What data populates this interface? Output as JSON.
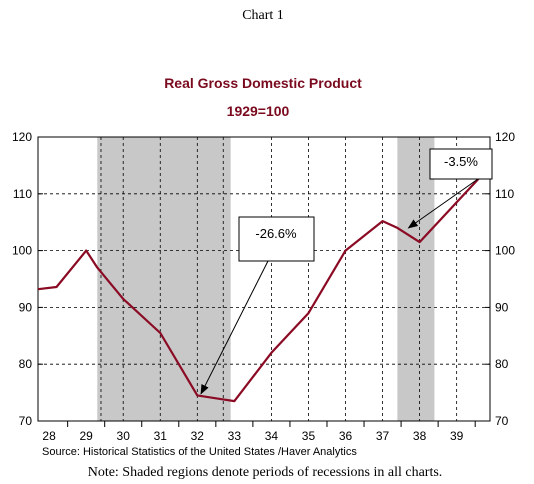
{
  "header": {
    "chart_number": "Chart 1"
  },
  "footer": {
    "source": "Source:  Historical Statistics of the United States /Haver Analytics",
    "note": "Note:  Shaded regions denote periods of recessions in all charts."
  },
  "chart_data": {
    "type": "line",
    "title": "Real Gross Domestic Product",
    "subtitle": "1929=100",
    "xlabel": "",
    "ylabel": "",
    "ylim": [
      70,
      120
    ],
    "xlim": [
      1927.7,
      1939.9
    ],
    "y_ticks": [
      70,
      80,
      90,
      100,
      110,
      120
    ],
    "x_ticks": [
      {
        "label": "28",
        "pos": 1928
      },
      {
        "label": "29",
        "pos": 1929
      },
      {
        "label": "30",
        "pos": 1930
      },
      {
        "label": "31",
        "pos": 1931
      },
      {
        "label": "32",
        "pos": 1932
      },
      {
        "label": "33",
        "pos": 1933
      },
      {
        "label": "34",
        "pos": 1934
      },
      {
        "label": "35",
        "pos": 1935
      },
      {
        "label": "36",
        "pos": 1936
      },
      {
        "label": "37",
        "pos": 1937
      },
      {
        "label": "38",
        "pos": 1938
      },
      {
        "label": "39",
        "pos": 1939
      }
    ],
    "series": [
      {
        "color": "#8b0a24",
        "x": [
          1927.7,
          1928.2,
          1929.0,
          1929.3,
          1930.0,
          1931.0,
          1932.0,
          1932.7,
          1933.0,
          1934.0,
          1935.0,
          1936.0,
          1937.0,
          1937.4,
          1938.0,
          1939.0,
          1939.9
        ],
        "y": [
          93.2,
          93.6,
          100.0,
          97.0,
          91.5,
          85.5,
          74.5,
          73.8,
          73.5,
          82.0,
          89.0,
          100.0,
          105.2,
          104.0,
          101.5,
          108.5,
          114.8
        ]
      }
    ],
    "recessions": [
      {
        "start": 1929.3,
        "end": 1932.9
      },
      {
        "start": 1937.4,
        "end": 1938.4
      }
    ],
    "vgrid": [
      1929.4,
      1930.0,
      1931.0,
      1932.0,
      1932.7,
      1934.0,
      1935.0,
      1936.0,
      1937.0,
      1938.0,
      1939.0
    ],
    "hgrid": [
      80,
      90,
      100,
      110
    ],
    "annotations": [
      {
        "text": "-26.6%",
        "target": [
          1932.1,
          74.8
        ]
      },
      {
        "text": "-3.5%",
        "target": [
          1937.7,
          104.0
        ]
      }
    ],
    "grid": true,
    "legend": "none"
  }
}
